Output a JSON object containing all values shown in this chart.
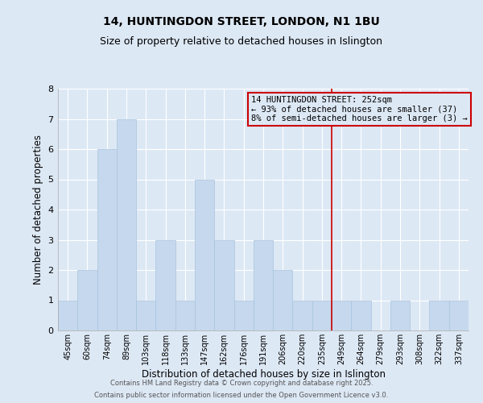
{
  "title": "14, HUNTINGDON STREET, LONDON, N1 1BU",
  "subtitle": "Size of property relative to detached houses in Islington",
  "xlabel": "Distribution of detached houses by size in Islington",
  "ylabel": "Number of detached properties",
  "categories": [
    "45sqm",
    "60sqm",
    "74sqm",
    "89sqm",
    "103sqm",
    "118sqm",
    "133sqm",
    "147sqm",
    "162sqm",
    "176sqm",
    "191sqm",
    "206sqm",
    "220sqm",
    "235sqm",
    "249sqm",
    "264sqm",
    "279sqm",
    "293sqm",
    "308sqm",
    "322sqm",
    "337sqm"
  ],
  "values": [
    1,
    2,
    6,
    7,
    1,
    3,
    1,
    5,
    3,
    1,
    3,
    2,
    1,
    1,
    1,
    1,
    0,
    1,
    0,
    1,
    1
  ],
  "bar_color": "#c5d8ed",
  "bar_edge_color": "#a8c4de",
  "annotation_line1": "14 HUNTINGDON STREET: 252sqm",
  "annotation_line2": "← 93% of detached houses are smaller (37)",
  "annotation_line3": "8% of semi-detached houses are larger (3) →",
  "annotation_box_color": "#cc0000",
  "line_index": 14,
  "ylim": [
    0,
    8
  ],
  "yticks": [
    0,
    1,
    2,
    3,
    4,
    5,
    6,
    7,
    8
  ],
  "footer_line1": "Contains HM Land Registry data © Crown copyright and database right 2025.",
  "footer_line2": "Contains public sector information licensed under the Open Government Licence v3.0.",
  "bg_color": "#dde8f5",
  "grid_color": "#ffffff",
  "title_fontsize": 10,
  "subtitle_fontsize": 9
}
